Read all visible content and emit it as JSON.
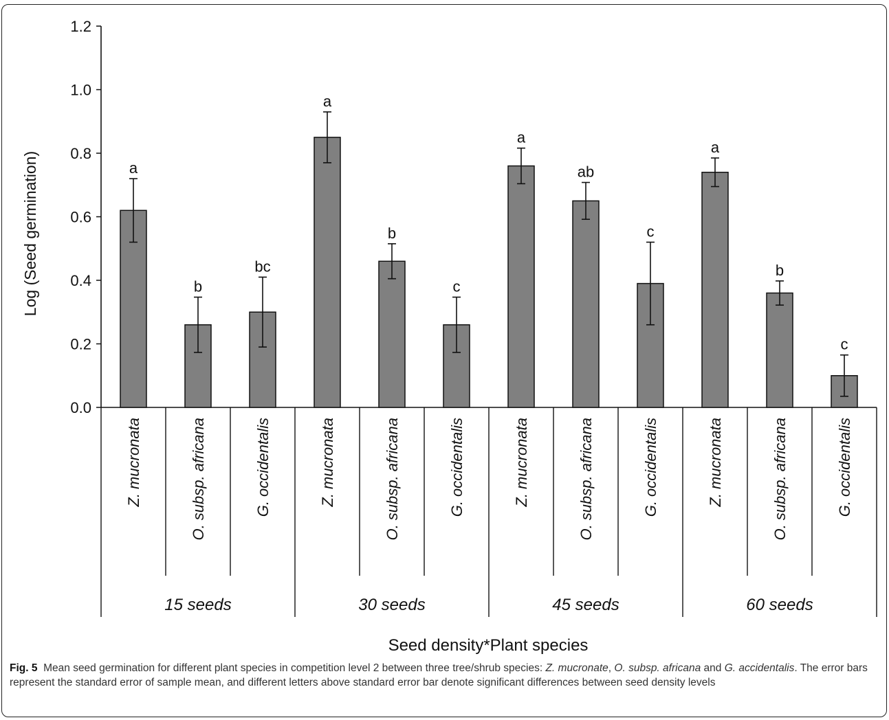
{
  "chart_data": {
    "type": "bar",
    "ylabel": "Log (Seed germination)",
    "xlabel": "Seed density*Plant species",
    "ylim": [
      0,
      1.2
    ],
    "yticks": [
      "0.0",
      "0.2",
      "0.4",
      "0.6",
      "0.8",
      "1.0",
      "1.2"
    ],
    "bar_color": "#808080",
    "groups": [
      "15 seeds",
      "30 seeds",
      "45 seeds",
      "60 seeds"
    ],
    "categories": [
      "Z. mucronata",
      "O. subsp. africana",
      "G. occidentalis"
    ],
    "bars": [
      {
        "group": "15 seeds",
        "category": "Z. mucronata",
        "value": 0.62,
        "error": 0.1,
        "letter": "a"
      },
      {
        "group": "15 seeds",
        "category": "O. subsp. africana",
        "value": 0.26,
        "error": 0.087,
        "letter": "b"
      },
      {
        "group": "15 seeds",
        "category": "G. occidentalis",
        "value": 0.3,
        "error": 0.11,
        "letter": "bc"
      },
      {
        "group": "30 seeds",
        "category": "Z. mucronata",
        "value": 0.85,
        "error": 0.08,
        "letter": "a"
      },
      {
        "group": "30 seeds",
        "category": "O. subsp. africana",
        "value": 0.46,
        "error": 0.055,
        "letter": "b"
      },
      {
        "group": "30 seeds",
        "category": "G. occidentalis",
        "value": 0.26,
        "error": 0.087,
        "letter": "c"
      },
      {
        "group": "45 seeds",
        "category": "Z. mucronata",
        "value": 0.76,
        "error": 0.056,
        "letter": "a"
      },
      {
        "group": "45 seeds",
        "category": "O. subsp. africana",
        "value": 0.65,
        "error": 0.058,
        "letter": "ab"
      },
      {
        "group": "45 seeds",
        "category": "G. occidentalis",
        "value": 0.39,
        "error": 0.13,
        "letter": "c"
      },
      {
        "group": "60 seeds",
        "category": "Z. mucronata",
        "value": 0.74,
        "error": 0.045,
        "letter": "a"
      },
      {
        "group": "60 seeds",
        "category": "O. subsp. africana",
        "value": 0.36,
        "error": 0.038,
        "letter": "b"
      },
      {
        "group": "60 seeds",
        "category": "G. occidentalis",
        "value": 0.1,
        "error": 0.065,
        "letter": "c"
      }
    ]
  },
  "caption": {
    "label": "Fig. 5",
    "text_1": "Mean seed germination for different plant species in competition level 2 between three tree/shrub species: ",
    "species_1": "Z. mucronate",
    "sep_1": ", ",
    "species_2": "O. subsp. africana",
    "text_2": " and ",
    "species_3": "G. accidentalis",
    "text_3": ". The error bars represent the standard error of sample mean, and different letters above standard error bar denote significant differences between seed density levels"
  }
}
